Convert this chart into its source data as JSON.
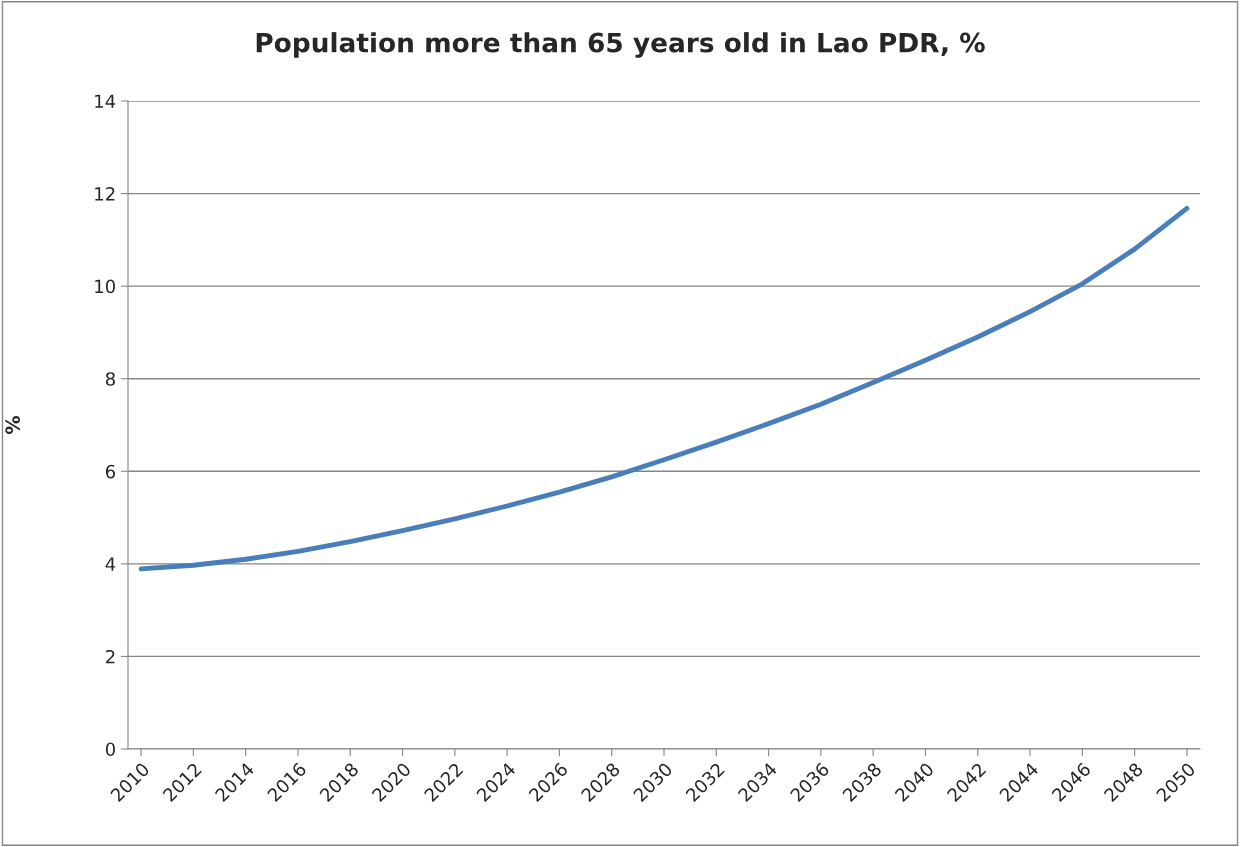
{
  "chart_data": {
    "type": "line",
    "title": "Population more than 65 years old in Lao PDR, %",
    "ylabel": "%",
    "x": [
      2010,
      2012,
      2014,
      2016,
      2018,
      2020,
      2022,
      2024,
      2026,
      2028,
      2030,
      2032,
      2034,
      2036,
      2038,
      2040,
      2042,
      2044,
      2046,
      2048,
      2050
    ],
    "series": [
      {
        "color": "#4a7ebb",
        "values": [
          3.89,
          3.97,
          4.1,
          4.27,
          4.48,
          4.72,
          4.97,
          5.25,
          5.55,
          5.88,
          6.25,
          6.63,
          7.03,
          7.45,
          7.92,
          8.4,
          8.9,
          9.45,
          10.05,
          10.8,
          11.68
        ]
      }
    ],
    "xlim": [
      2009.5,
      2050.5
    ],
    "xticks": [
      2010,
      2012,
      2014,
      2016,
      2018,
      2020,
      2022,
      2024,
      2026,
      2028,
      2030,
      2032,
      2034,
      2036,
      2038,
      2040,
      2042,
      2044,
      2046,
      2048,
      2050
    ],
    "ylim": [
      0,
      14
    ],
    "yticks": [
      0,
      2,
      4,
      6,
      8,
      10,
      12,
      14
    ],
    "grid": "y",
    "legend": false,
    "marker": "none",
    "line_style": "solid"
  }
}
